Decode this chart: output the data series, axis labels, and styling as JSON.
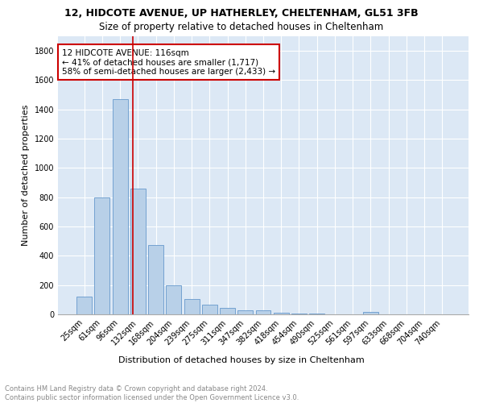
{
  "title1": "12, HIDCOTE AVENUE, UP HATHERLEY, CHELTENHAM, GL51 3FB",
  "title2": "Size of property relative to detached houses in Cheltenham",
  "xlabel": "Distribution of detached houses by size in Cheltenham",
  "ylabel": "Number of detached properties",
  "bar_labels": [
    "25sqm",
    "61sqm",
    "96sqm",
    "132sqm",
    "168sqm",
    "204sqm",
    "239sqm",
    "275sqm",
    "311sqm",
    "347sqm",
    "382sqm",
    "418sqm",
    "454sqm",
    "490sqm",
    "525sqm",
    "561sqm",
    "597sqm",
    "633sqm",
    "668sqm",
    "704sqm",
    "740sqm"
  ],
  "bar_values": [
    120,
    800,
    1470,
    860,
    475,
    200,
    105,
    68,
    45,
    30,
    25,
    10,
    5,
    3,
    2,
    1,
    15,
    0,
    0,
    0,
    0
  ],
  "bar_color": "#b8d0e8",
  "bar_edge_color": "#6699cc",
  "vline_x": 2.72,
  "vline_color": "#cc0000",
  "annotation_text": "12 HIDCOTE AVENUE: 116sqm\n← 41% of detached houses are smaller (1,717)\n58% of semi-detached houses are larger (2,433) →",
  "annotation_box_color": "#ffffff",
  "annotation_box_edge": "#cc0000",
  "ylim": [
    0,
    1900
  ],
  "yticks": [
    0,
    200,
    400,
    600,
    800,
    1000,
    1200,
    1400,
    1600,
    1800
  ],
  "bg_color": "#dce8f5",
  "footer_text": "Contains HM Land Registry data © Crown copyright and database right 2024.\nContains public sector information licensed under the Open Government Licence v3.0.",
  "title1_fontsize": 9,
  "title2_fontsize": 8.5,
  "xlabel_fontsize": 8,
  "ylabel_fontsize": 8,
  "tick_fontsize": 7,
  "annotation_fontsize": 7.5,
  "footer_fontsize": 6
}
